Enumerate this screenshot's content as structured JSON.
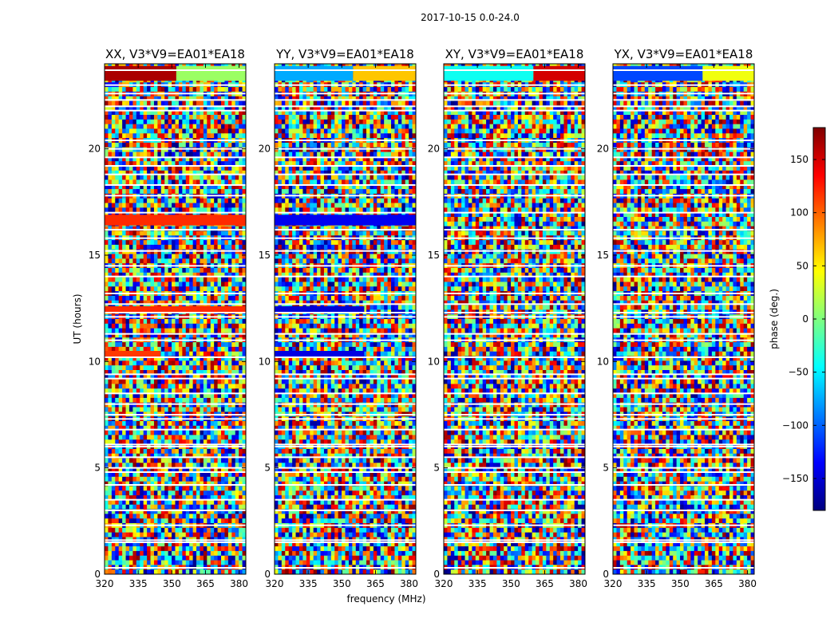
{
  "chart_data": {
    "type": "heatmap",
    "title": "2017-10-15 0.0-24.0",
    "xlabel": "frequency (MHz)",
    "ylabel": "UT (hours)",
    "colorbar_label": "phase (deg.)",
    "xlim": [
      320,
      383
    ],
    "ylim": [
      0,
      24
    ],
    "clim": [
      -180,
      180
    ],
    "xticks": [
      320,
      335,
      350,
      365,
      380
    ],
    "xtick_labels": [
      "320",
      "335",
      "350",
      "365",
      "380"
    ],
    "yticks": [
      0,
      5,
      10,
      15,
      20
    ],
    "ytick_labels": [
      "0",
      "5",
      "10",
      "15",
      "20"
    ],
    "colorbar_ticks": [
      150,
      100,
      50,
      0,
      -50,
      -100,
      -150
    ],
    "colorbar_tick_labels": [
      "150",
      "100",
      "50",
      "0",
      "−50",
      "−100",
      "−150"
    ],
    "colormap": [
      "#00007f",
      "#0000ff",
      "#007fff",
      "#00ffff",
      "#7fff7f",
      "#ffff00",
      "#ff7f00",
      "#ff0000",
      "#7f0000"
    ],
    "flagged_ut_hours": [
      0.3,
      1.5,
      1.6,
      2.3,
      3.0,
      3.5,
      4.2,
      4.8,
      5.0,
      5.5,
      6.0,
      6.1,
      6.8,
      7.3,
      7.5,
      8.0,
      8.5,
      9.2,
      9.4,
      10.2,
      11.0,
      11.3,
      12.1,
      12.3,
      12.7,
      13.2,
      14.0,
      14.5,
      15.2,
      15.8,
      16.2,
      17.0,
      17.8,
      18.3,
      18.8,
      19.2,
      19.6,
      20.0,
      20.4,
      21.8,
      22.0,
      22.3,
      22.6,
      23.0,
      23.7
    ],
    "coherent_bands": [
      {
        "panel": "XX",
        "ut_start": 16.4,
        "ut_end": 16.9,
        "freq_start": 320,
        "freq_end": 383,
        "phase": 120
      },
      {
        "panel": "XX",
        "ut_start": 12.3,
        "ut_end": 12.6,
        "freq_start": 320,
        "freq_end": 383,
        "phase": 120
      },
      {
        "panel": "XX",
        "ut_start": 10.2,
        "ut_end": 10.5,
        "freq_start": 320,
        "freq_end": 345,
        "phase": 115
      },
      {
        "panel": "XX",
        "ut_start": 23.2,
        "ut_end": 23.9,
        "freq_start": 320,
        "freq_end": 352,
        "phase": 165
      },
      {
        "panel": "XX",
        "ut_start": 23.2,
        "ut_end": 23.9,
        "freq_start": 352,
        "freq_end": 383,
        "phase": 10
      },
      {
        "panel": "YY",
        "ut_start": 16.4,
        "ut_end": 16.9,
        "freq_start": 320,
        "freq_end": 383,
        "phase": -140
      },
      {
        "panel": "YY",
        "ut_start": 12.3,
        "ut_end": 12.6,
        "freq_start": 320,
        "freq_end": 360,
        "phase": -150
      },
      {
        "panel": "YY",
        "ut_start": 10.2,
        "ut_end": 10.5,
        "freq_start": 320,
        "freq_end": 360,
        "phase": -145
      },
      {
        "panel": "YY",
        "ut_start": 23.2,
        "ut_end": 23.9,
        "freq_start": 320,
        "freq_end": 355,
        "phase": -75
      },
      {
        "panel": "YY",
        "ut_start": 23.2,
        "ut_end": 23.9,
        "freq_start": 355,
        "freq_end": 383,
        "phase": 65
      },
      {
        "panel": "XY",
        "ut_start": 23.2,
        "ut_end": 23.9,
        "freq_start": 320,
        "freq_end": 360,
        "phase": -40
      },
      {
        "panel": "XY",
        "ut_start": 23.2,
        "ut_end": 23.9,
        "freq_start": 360,
        "freq_end": 383,
        "phase": 150
      },
      {
        "panel": "YX",
        "ut_start": 23.2,
        "ut_end": 23.9,
        "freq_start": 320,
        "freq_end": 360,
        "phase": -110
      },
      {
        "panel": "YX",
        "ut_start": 23.2,
        "ut_end": 23.9,
        "freq_start": 360,
        "freq_end": 383,
        "phase": 40
      }
    ],
    "panels": [
      {
        "id": "XX",
        "title": "XX, V3*V9=EA01*EA18"
      },
      {
        "id": "YY",
        "title": "YY, V3*V9=EA01*EA18"
      },
      {
        "id": "XY",
        "title": "XY, V3*V9=EA01*EA18"
      },
      {
        "id": "YX",
        "title": "YX, V3*V9=EA01*EA18"
      }
    ]
  }
}
